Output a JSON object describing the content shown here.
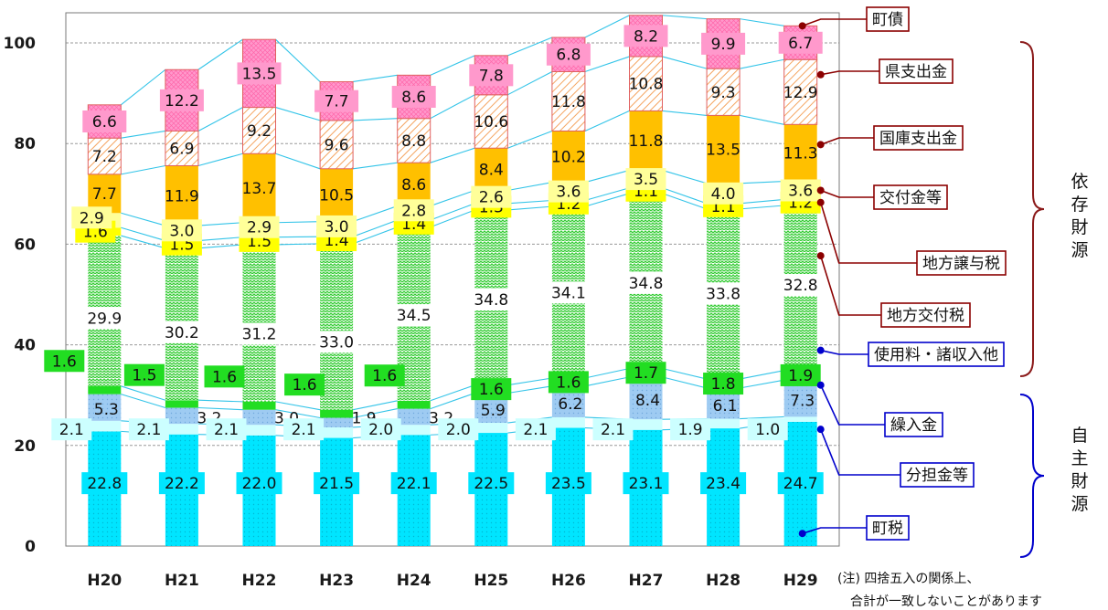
{
  "chart_data": {
    "type": "bar",
    "stacked": true,
    "categories": [
      "H20",
      "H21",
      "H22",
      "H23",
      "H24",
      "H25",
      "H26",
      "H27",
      "H28",
      "H29"
    ],
    "ylim": [
      0,
      106
    ],
    "yticks": [
      0,
      20,
      40,
      60,
      80,
      100
    ],
    "grid": true,
    "series": [
      {
        "name": "町税",
        "color": "#00e5ff",
        "values": [
          22.8,
          22.2,
          22.0,
          21.5,
          22.1,
          22.5,
          23.5,
          23.1,
          23.4,
          24.7
        ]
      },
      {
        "name": "分担金等",
        "color": "#ccffff",
        "values": [
          2.1,
          2.1,
          2.1,
          2.1,
          2.0,
          2.0,
          2.1,
          2.1,
          1.9,
          1.0
        ]
      },
      {
        "name": "繰入金",
        "color": "#9ecbf2",
        "values": [
          5.3,
          3.2,
          3.0,
          1.9,
          3.2,
          5.9,
          6.2,
          8.4,
          6.1,
          7.3
        ]
      },
      {
        "name": "使用料・諸収入他",
        "color": "#22dd22",
        "values": [
          1.6,
          1.5,
          1.6,
          1.6,
          1.6,
          1.6,
          1.6,
          1.7,
          1.8,
          1.9
        ]
      },
      {
        "name": "地方交付税",
        "color": "#9ee39e",
        "values": [
          29.9,
          30.2,
          31.2,
          33.0,
          34.5,
          34.8,
          34.1,
          34.8,
          33.8,
          32.8
        ]
      },
      {
        "name": "地方譲与税",
        "color": "#ffff00",
        "values": [
          1.6,
          1.5,
          1.5,
          1.4,
          1.4,
          1.3,
          1.2,
          1.1,
          1.1,
          1.2
        ]
      },
      {
        "name": "交付金等",
        "color": "#ffff99",
        "values": [
          2.9,
          3.0,
          2.9,
          3.0,
          2.8,
          2.6,
          3.6,
          3.5,
          4.0,
          3.6
        ]
      },
      {
        "name": "国庫支出金",
        "color": "#ffc000",
        "values": [
          7.7,
          11.9,
          13.7,
          10.5,
          8.6,
          8.4,
          10.2,
          11.8,
          13.5,
          11.3
        ]
      },
      {
        "name": "県支出金",
        "color": "#fce4c4",
        "values": [
          7.2,
          6.9,
          9.2,
          9.6,
          8.8,
          10.6,
          11.8,
          10.8,
          9.3,
          12.9
        ]
      },
      {
        "name": "町債",
        "color": "#ff99cc",
        "values": [
          6.6,
          12.2,
          13.5,
          7.7,
          8.6,
          7.8,
          6.8,
          8.2,
          9.9,
          6.7
        ]
      }
    ],
    "groups": [
      {
        "label": "依存財源",
        "series": [
          "使用料・諸収入他",
          "地方交付税",
          "地方譲与税",
          "交付金等",
          "国庫支出金",
          "県支出金",
          "町債"
        ]
      },
      {
        "label": "自主財源",
        "series": [
          "町税",
          "分担金等",
          "繰入金"
        ]
      }
    ],
    "note": [
      "(注) 四捨五入の関係上、",
      "合計が一致しないことがあります"
    ]
  }
}
